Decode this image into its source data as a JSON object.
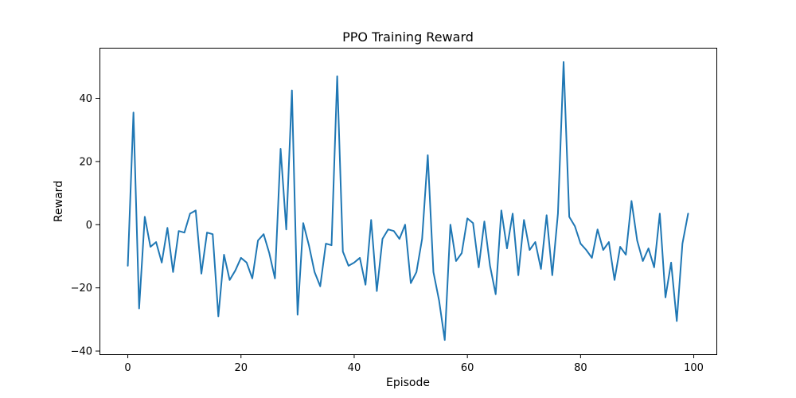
{
  "chart_data": {
    "type": "line",
    "title": "PPO Training Reward",
    "xlabel": "Episode",
    "ylabel": "Reward",
    "xlim": [
      -5,
      104
    ],
    "ylim": [
      -41,
      56
    ],
    "xticks": [
      0,
      20,
      40,
      60,
      80,
      100
    ],
    "yticks": [
      -40,
      -20,
      0,
      20,
      40
    ],
    "grid": false,
    "legend": "none",
    "series": [
      {
        "color": "#1f77b4",
        "x": [
          0,
          1,
          2,
          3,
          4,
          5,
          6,
          7,
          8,
          9,
          10,
          11,
          12,
          13,
          14,
          15,
          16,
          17,
          18,
          19,
          20,
          21,
          22,
          23,
          24,
          25,
          26,
          27,
          28,
          29,
          30,
          31,
          32,
          33,
          34,
          35,
          36,
          37,
          38,
          39,
          40,
          41,
          42,
          43,
          44,
          45,
          46,
          47,
          48,
          49,
          50,
          51,
          52,
          53,
          54,
          55,
          56,
          57,
          58,
          59,
          60,
          61,
          62,
          63,
          64,
          65,
          66,
          67,
          68,
          69,
          70,
          71,
          72,
          73,
          74,
          75,
          76,
          77,
          78,
          79,
          80,
          81,
          82,
          83,
          84,
          85,
          86,
          87,
          88,
          89,
          90,
          91,
          92,
          93,
          94,
          95,
          96,
          97,
          98,
          99
        ],
        "values": [
          -13,
          35.5,
          -26.5,
          2.5,
          -7,
          -5.5,
          -12,
          -1,
          -15,
          -2,
          -2.5,
          3.5,
          4.5,
          -15.5,
          -2.5,
          -3,
          -29,
          -9.5,
          -17.5,
          -14.5,
          -10.5,
          -12,
          -17,
          -5,
          -3,
          -9,
          -17,
          24,
          -1.5,
          42.5,
          -28.5,
          0.5,
          -6.5,
          -15,
          -19.5,
          -6,
          -6.5,
          47,
          -8.5,
          -13,
          -12,
          -10.5,
          -19,
          1.5,
          -21,
          -4.5,
          -1.5,
          -2,
          -4.5,
          0,
          -18.5,
          -15,
          -4.5,
          22,
          -15,
          -24,
          -36.5,
          0,
          -11.5,
          -9,
          2,
          0.5,
          -13.5,
          1,
          -13,
          -22,
          4.5,
          -7.5,
          3.5,
          -16,
          1.5,
          -8,
          -5.5,
          -14,
          3,
          -16,
          3.5,
          51.5,
          2.5,
          -0.5,
          -6,
          -8,
          -10.5,
          -1.5,
          -8,
          -5.5,
          -17.5,
          -7,
          -9.5,
          7.5,
          -5,
          -11.5,
          -7.5,
          -13.5,
          3.5,
          -23,
          -12,
          -30.5,
          -6,
          3.5
        ]
      }
    ]
  }
}
